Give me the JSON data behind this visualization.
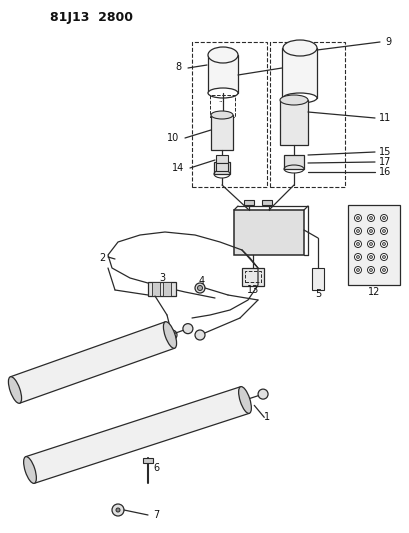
{
  "title": "81J13  2800",
  "bg_color": "#ffffff",
  "line_color": "#2a2a2a",
  "text_color": "#111111",
  "figsize": [
    4.09,
    5.33
  ],
  "dpi": 100
}
